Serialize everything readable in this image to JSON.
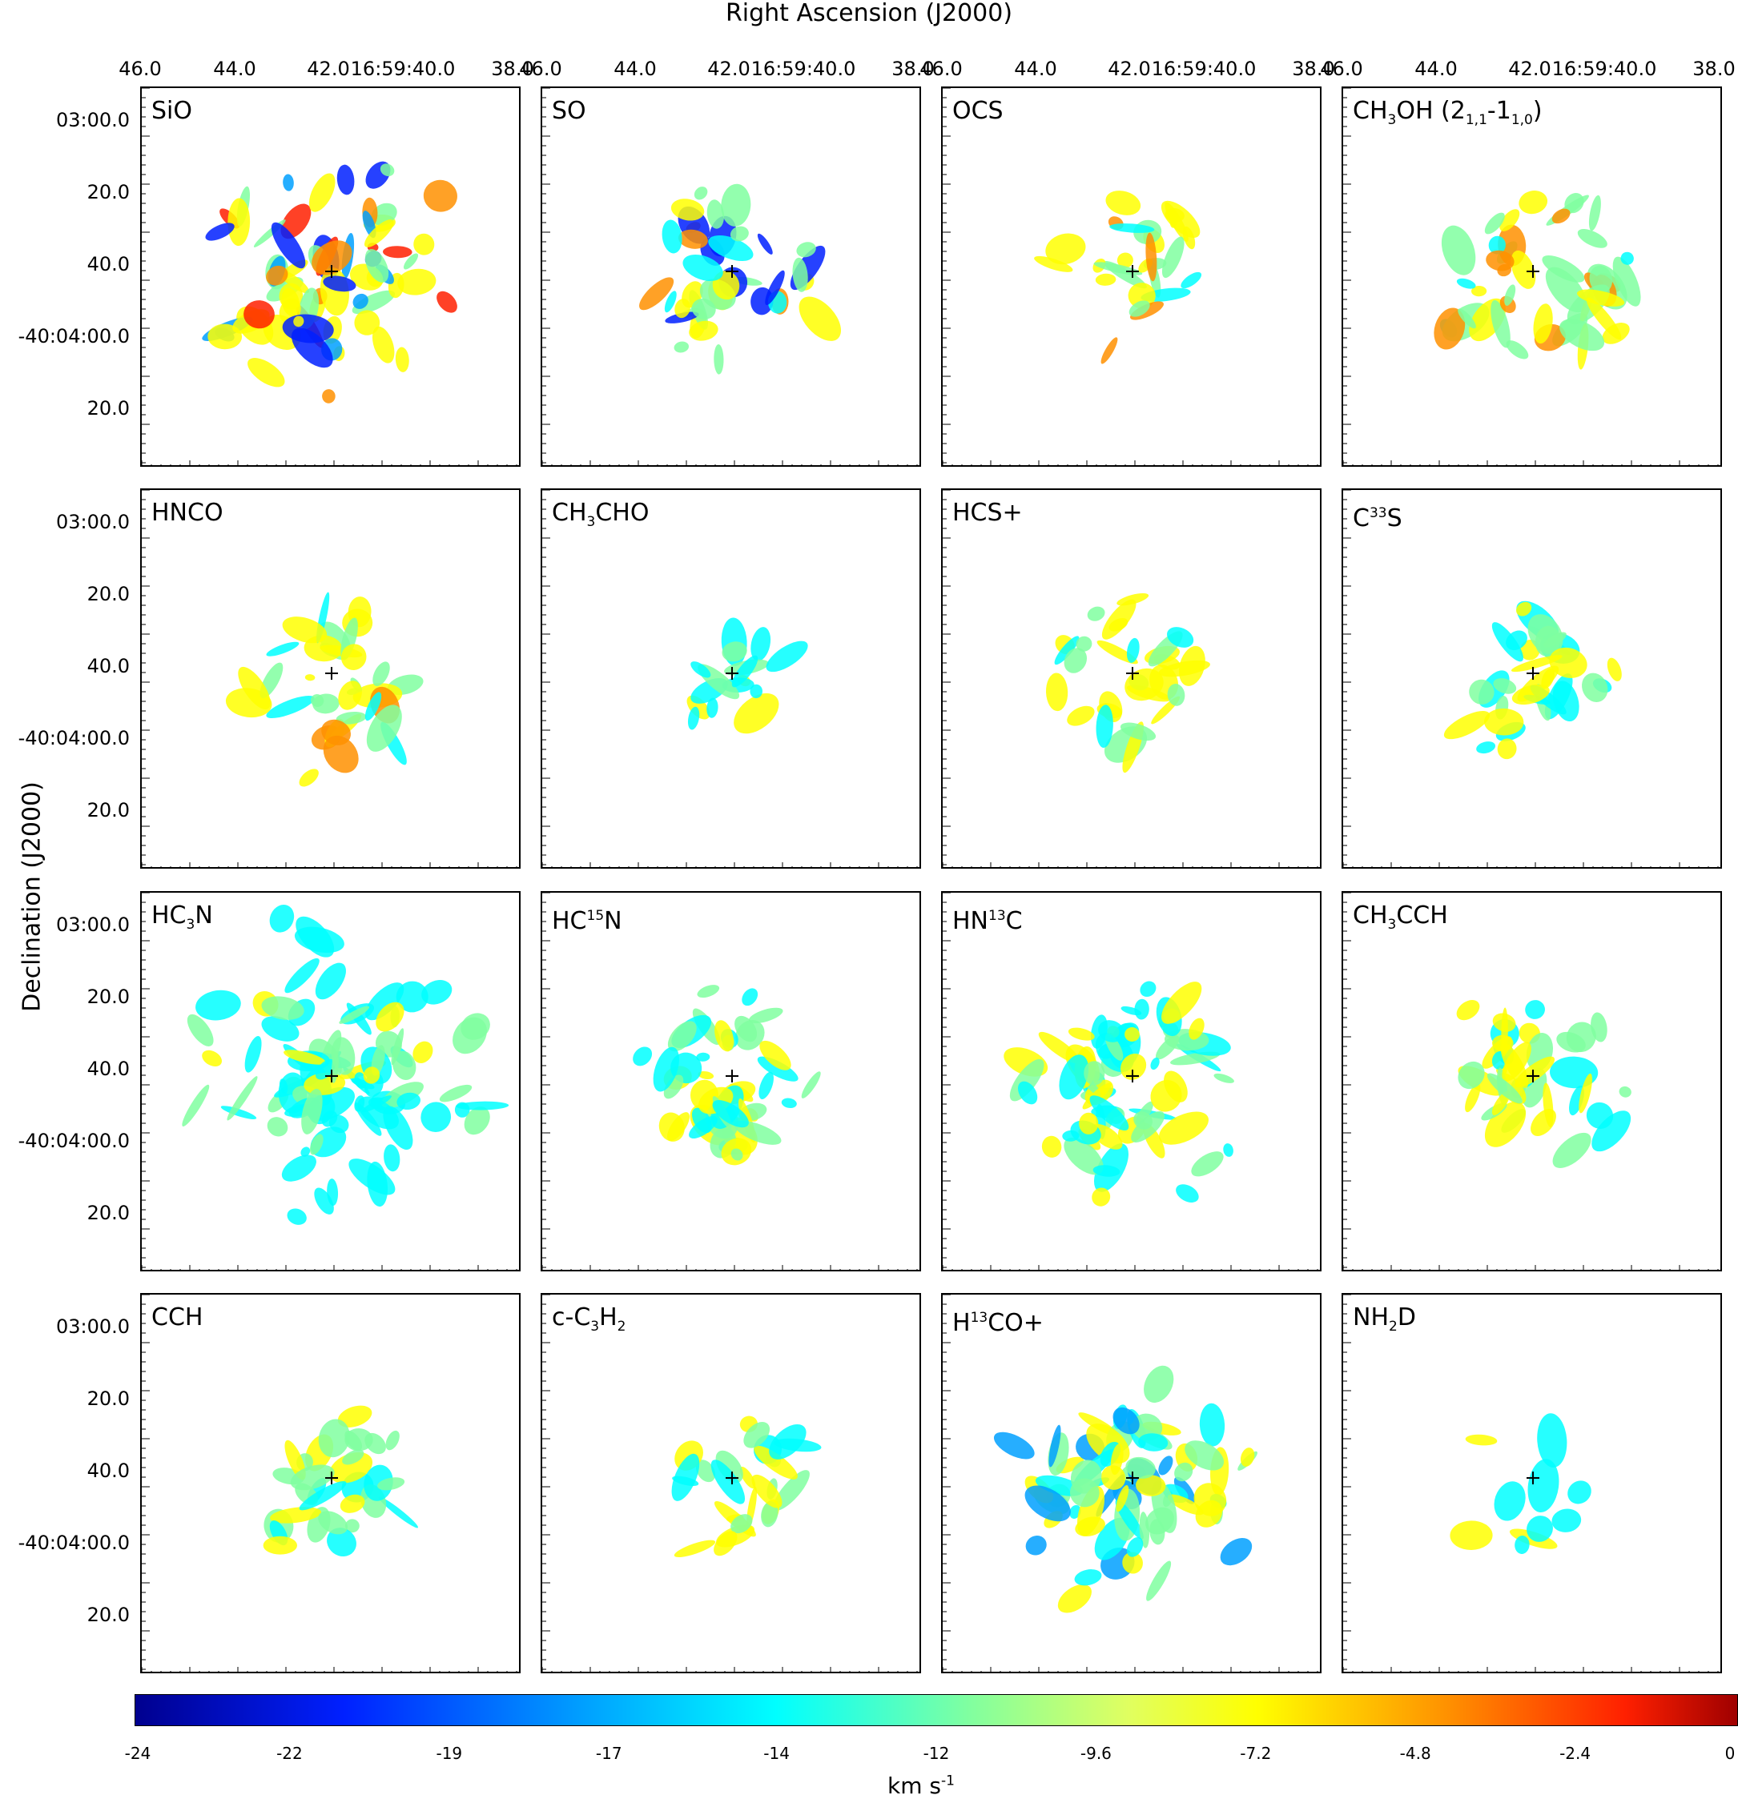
{
  "figure": {
    "x_axis_title": "Right Ascension (J2000)",
    "y_axis_title": "Declination (J2000)",
    "ra_ticks": [
      "46.0",
      "44.0",
      "42.0",
      "16:59:40.0",
      "38.0"
    ],
    "dec_ticks": [
      "03:00.0",
      "20.0",
      "40.0",
      "-40:04:00.0",
      "20.0"
    ],
    "panels": [
      {
        "title": "SiO"
      },
      {
        "title": "SO"
      },
      {
        "title": "OCS"
      },
      {
        "title": "CH3OH (2_{1,1}-1_{1,0})"
      },
      {
        "title": "HNCO"
      },
      {
        "title": "CH3CHO"
      },
      {
        "title": "HCS+"
      },
      {
        "title": "C33S"
      },
      {
        "title": "HC3N"
      },
      {
        "title": "HC15N"
      },
      {
        "title": "HN13C"
      },
      {
        "title": "CH3CCH"
      },
      {
        "title": "CCH"
      },
      {
        "title": "c-C3H2"
      },
      {
        "title": "H13CO+"
      },
      {
        "title": "NH2D"
      }
    ],
    "colorbar": {
      "ticks": [
        "-24",
        "-22",
        "-19",
        "-17",
        "-14",
        "-12",
        "-9.6",
        "-7.2",
        "-4.8",
        "-2.4",
        "0"
      ],
      "unit": "km s-1",
      "colormap": "jet",
      "colors": [
        "#00008f",
        "#0020ff",
        "#00a0ff",
        "#00ffff",
        "#80ffa0",
        "#ffff00",
        "#ff9000",
        "#ff2000",
        "#9f0000"
      ]
    }
  }
}
